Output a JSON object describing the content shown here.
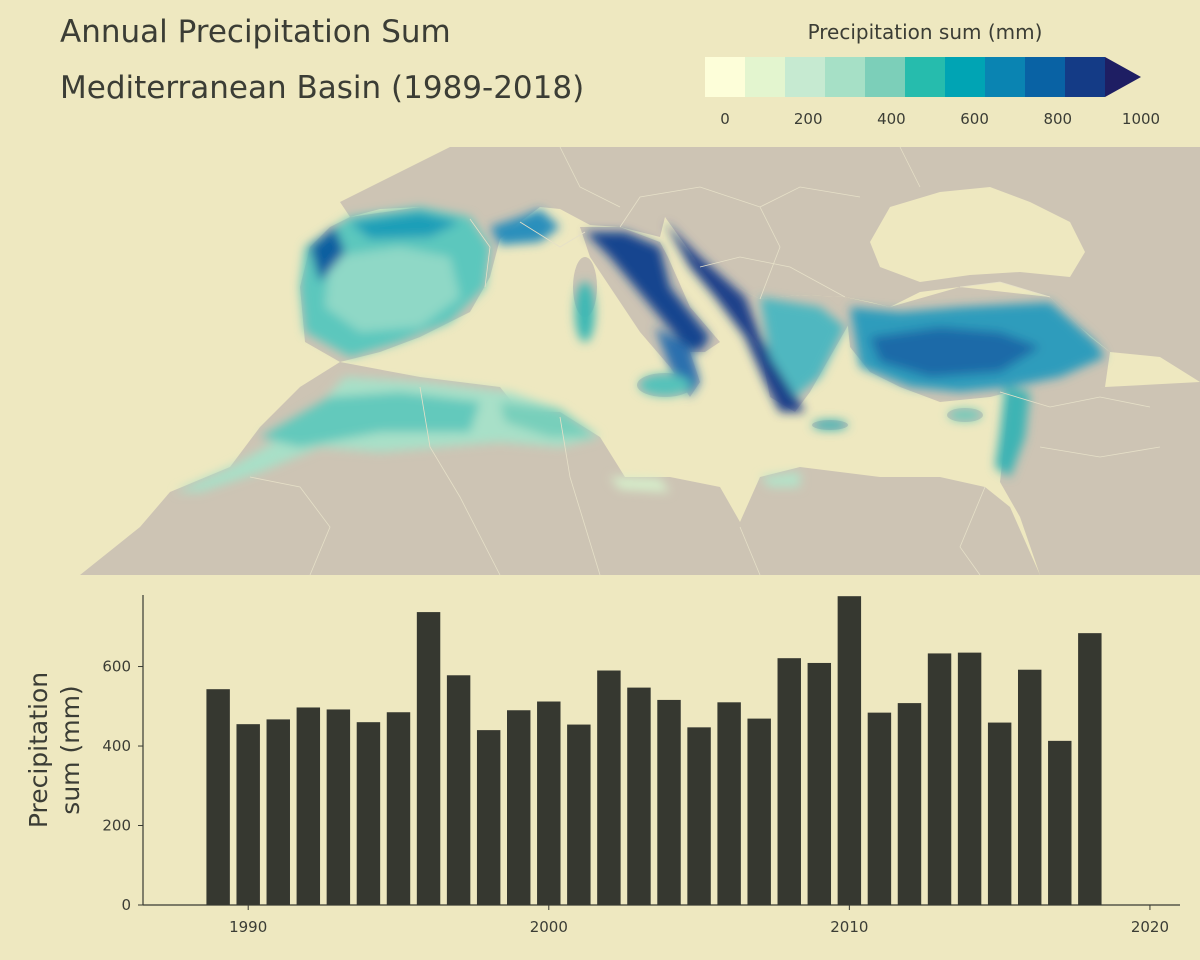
{
  "header": {
    "title_line1": "Annual Precipitation Sum",
    "title_line2": "Mediterranean Basin (1989-2018)"
  },
  "legend": {
    "title": "Precipitation sum (mm)",
    "tick_labels": [
      "0",
      "200",
      "400",
      "600",
      "800",
      "1000"
    ],
    "colors": [
      "#fdfed9",
      "#e3f5cf",
      "#c6ead1",
      "#a6e0c6",
      "#7ccfb9",
      "#26bcad",
      "#00a4b4",
      "#0a84b2",
      "#0962a4",
      "#143b86",
      "#1e1e63"
    ],
    "extend": "max"
  },
  "map": {
    "land_color": "#cdc4b4",
    "sea_color": "#eee8c0",
    "border_color": "#e6e0c8"
  },
  "chart_data": {
    "type": "bar",
    "title": "",
    "xlabel": "",
    "ylabel": "Precipitation sum (mm)",
    "ylabel_lines": [
      "Precipitation",
      "sum (mm)"
    ],
    "x": [
      1989,
      1990,
      1991,
      1992,
      1993,
      1994,
      1995,
      1996,
      1997,
      1998,
      1999,
      2000,
      2001,
      2002,
      2003,
      2004,
      2005,
      2006,
      2007,
      2008,
      2009,
      2010,
      2011,
      2012,
      2013,
      2014,
      2015,
      2016,
      2017,
      2018
    ],
    "values": [
      543,
      455,
      467,
      497,
      492,
      460,
      485,
      737,
      578,
      440,
      490,
      512,
      454,
      590,
      547,
      516,
      447,
      510,
      469,
      621,
      609,
      777,
      484,
      508,
      633,
      635,
      459,
      592,
      413,
      684
    ],
    "xlim": [
      1986.5,
      2021
    ],
    "ylim": [
      0,
      780
    ],
    "xticks": [
      1990,
      2000,
      2010,
      2020
    ],
    "yticks": [
      0,
      200,
      400,
      600
    ],
    "bar_color": "#363830",
    "grid": false
  }
}
